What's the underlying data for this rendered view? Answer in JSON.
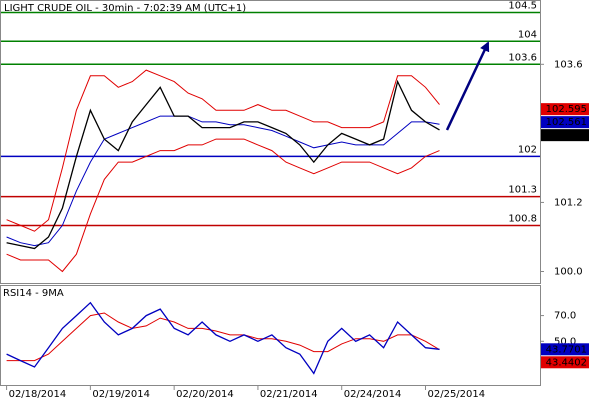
{
  "chart_data": [
    {
      "type": "line",
      "title": "LIGHT CRUDE OIL - 30min - 7:02:39 AM (UTC+1)",
      "x": [
        0,
        1,
        2,
        3,
        4,
        5,
        6,
        7,
        8,
        9,
        10,
        11,
        12,
        13,
        14,
        15,
        16,
        17,
        18,
        19,
        20,
        21,
        22,
        23,
        24,
        25,
        26,
        27,
        28,
        29,
        30,
        31
      ],
      "xlim": [
        -0.4,
        38.2
      ],
      "ylim": [
        99.8,
        104.7
      ],
      "yticks": [
        103.6,
        101.2,
        {
          "value": 100,
          "label": "100.0"
        }
      ],
      "series": [
        {
          "color": "#e00000",
          "values": [
            100.9,
            100.8,
            100.7,
            100.9,
            101.8,
            102.8,
            103.4,
            103.4,
            103.2,
            103.3,
            103.5,
            103.4,
            103.3,
            103.1,
            103.0,
            102.8,
            102.8,
            102.8,
            102.9,
            102.8,
            102.8,
            102.7,
            102.6,
            102.6,
            102.5,
            102.5,
            102.5,
            102.6,
            103.4,
            103.4,
            103.2,
            102.9
          ]
        },
        {
          "color": "#e00000",
          "values": [
            100.3,
            100.2,
            100.2,
            100.2,
            100.0,
            100.3,
            101.0,
            101.6,
            101.9,
            101.9,
            102.0,
            102.1,
            102.1,
            102.2,
            102.2,
            102.3,
            102.3,
            102.3,
            102.2,
            102.1,
            101.9,
            101.8,
            101.7,
            101.8,
            101.9,
            101.9,
            101.9,
            101.8,
            101.7,
            101.8,
            102.0,
            102.1
          ]
        },
        {
          "color": "#0000c0",
          "values": [
            100.6,
            100.5,
            100.45,
            100.5,
            100.8,
            101.4,
            101.9,
            102.3,
            102.4,
            102.5,
            102.6,
            102.7,
            102.7,
            102.7,
            102.6,
            102.6,
            102.55,
            102.55,
            102.5,
            102.45,
            102.35,
            102.25,
            102.15,
            102.2,
            102.25,
            102.2,
            102.2,
            102.2,
            102.4,
            102.6,
            102.6,
            102.56
          ]
        },
        {
          "color": "#000000",
          "values": [
            100.5,
            100.45,
            100.4,
            100.6,
            101.1,
            102.0,
            102.8,
            102.3,
            102.1,
            102.6,
            102.9,
            103.2,
            102.7,
            102.7,
            102.5,
            102.5,
            102.5,
            102.6,
            102.6,
            102.5,
            102.4,
            102.2,
            101.9,
            102.2,
            102.4,
            102.3,
            102.2,
            102.3,
            103.3,
            102.8,
            102.6,
            102.46
          ]
        }
      ],
      "levels": [
        {
          "value": 104.5,
          "color": "#008000"
        },
        {
          "value": 104,
          "color": "#008000"
        },
        {
          "value": 103.6,
          "color": "#008000"
        },
        {
          "value": 102,
          "color": "#0000c0"
        },
        {
          "value": 101.3,
          "color": "#c00000"
        },
        {
          "value": 100.8,
          "color": "#c00000"
        }
      ],
      "markers": [
        {
          "value": 102.595,
          "color": "#e00000"
        },
        {
          "value": 102.561,
          "color": "#0000c0"
        },
        {
          "value": 102.46,
          "color": "#000000"
        }
      ]
    },
    {
      "type": "line",
      "title": "RSI14 - 9MA",
      "x": [
        0,
        1,
        2,
        3,
        4,
        5,
        6,
        7,
        8,
        9,
        10,
        11,
        12,
        13,
        14,
        15,
        16,
        17,
        18,
        19,
        20,
        21,
        22,
        23,
        24,
        25,
        26,
        27,
        28,
        29,
        30,
        31
      ],
      "xlim": [
        -0.4,
        38.2
      ],
      "xticks": [
        {
          "value": 0,
          "label": "02/18/2014"
        },
        {
          "value": 6,
          "label": "02/19/2014"
        },
        {
          "value": 12,
          "label": "02/20/2014"
        },
        {
          "value": 18,
          "label": "02/21/2014"
        },
        {
          "value": 24,
          "label": "02/24/2014"
        },
        {
          "value": 30,
          "label": "02/25/2014"
        }
      ],
      "ylim": [
        16,
        93
      ],
      "yticks": [
        {
          "value": 70,
          "label": "70.0"
        },
        {
          "value": 50,
          "label": "50.0"
        }
      ],
      "series": [
        {
          "color": "#e00000",
          "values": [
            35,
            35,
            35,
            40,
            50,
            60,
            70,
            72,
            65,
            60,
            62,
            68,
            65,
            60,
            60,
            58,
            55,
            55,
            52,
            52,
            50,
            47,
            42,
            42,
            48,
            52,
            52,
            50,
            55,
            55,
            50,
            43.4402
          ]
        },
        {
          "color": "#0000c0",
          "values": [
            40,
            35,
            30,
            45,
            60,
            70,
            80,
            65,
            55,
            60,
            70,
            75,
            60,
            55,
            65,
            55,
            50,
            55,
            50,
            55,
            45,
            40,
            25,
            50,
            60,
            50,
            55,
            45,
            65,
            55,
            45,
            43.7701
          ]
        }
      ],
      "markers": [
        {
          "value": 43.7701,
          "color": "#0000c0"
        },
        {
          "value": 43.4402,
          "color": "#e00000"
        }
      ]
    }
  ]
}
